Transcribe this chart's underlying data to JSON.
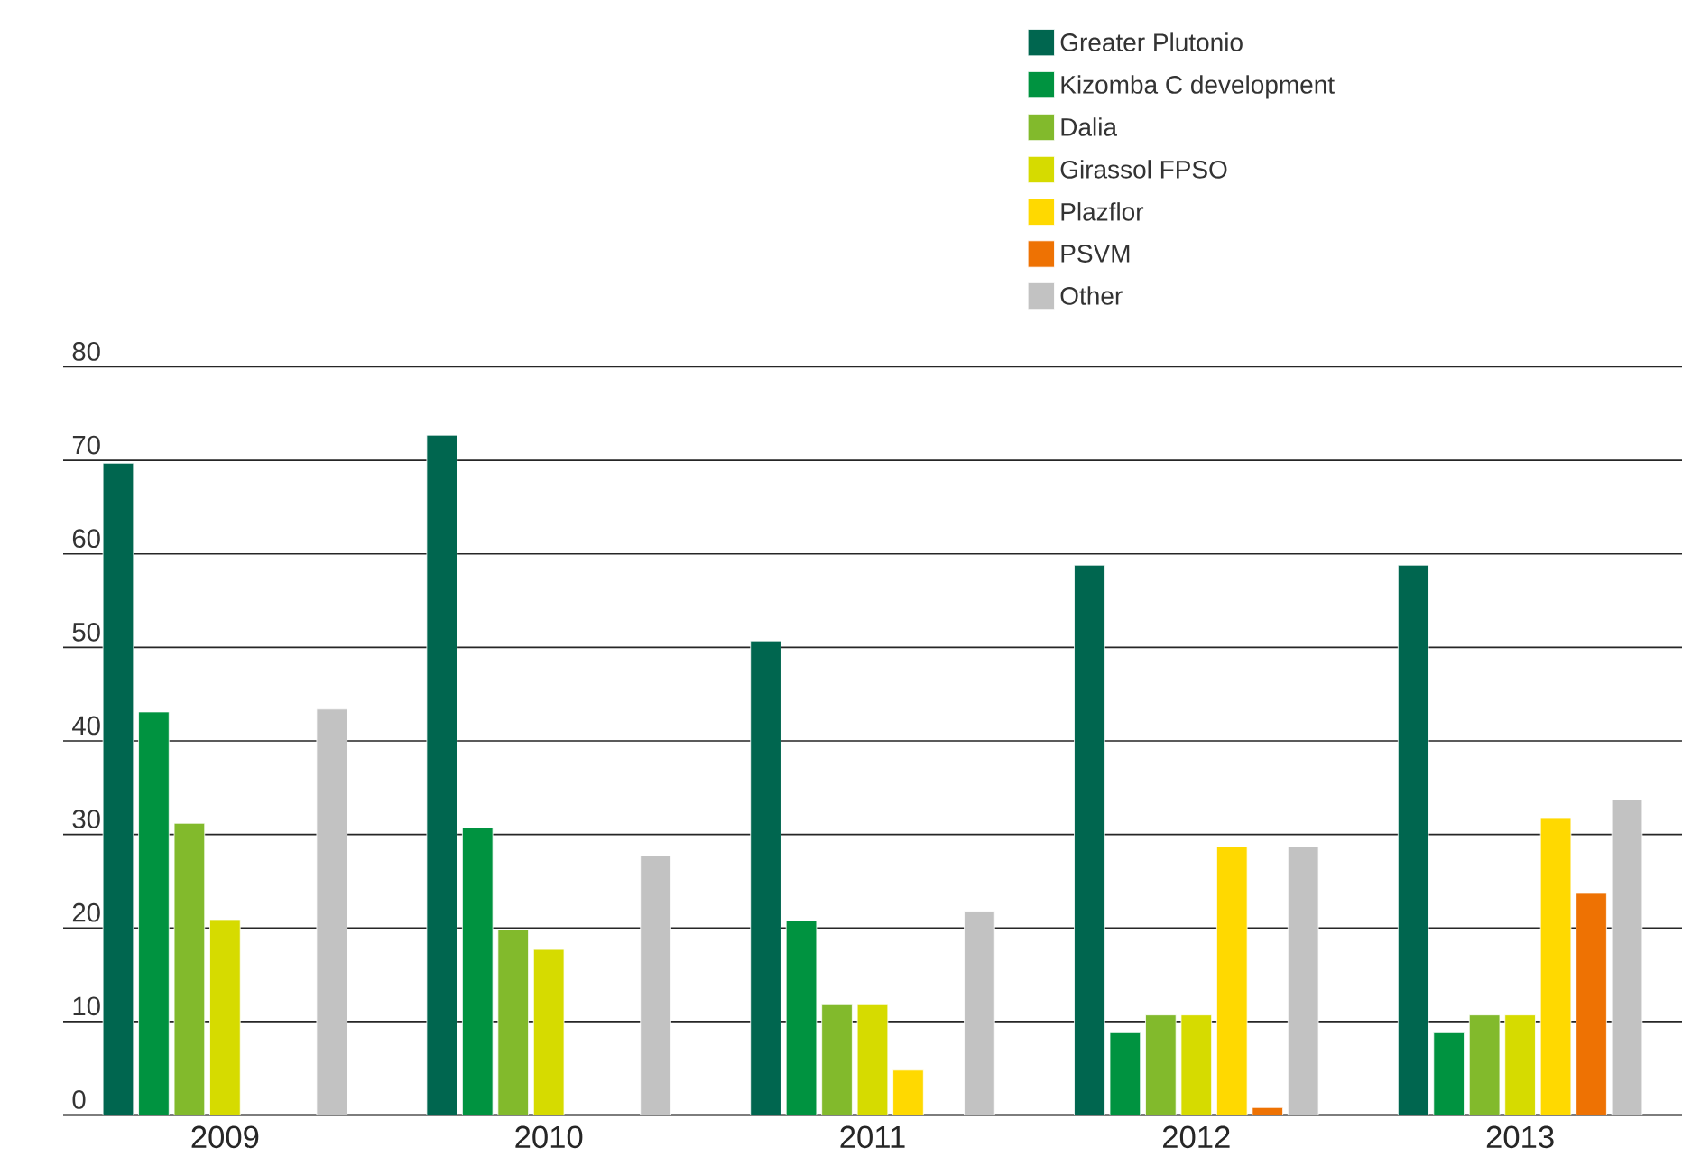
{
  "chart_data": {
    "type": "bar",
    "categories": [
      "2009",
      "2010",
      "2011",
      "2012",
      "2013"
    ],
    "series": [
      {
        "name": "Greater Plutonio",
        "color": "#00664f",
        "values": [
          69.7,
          72.7,
          50.7,
          58.8,
          58.8
        ]
      },
      {
        "name": "Kizomba C development",
        "color": "#009340",
        "values": [
          43.1,
          30.7,
          20.8,
          8.8,
          8.8
        ]
      },
      {
        "name": "Dalia",
        "color": "#82ba2c",
        "values": [
          31.2,
          19.8,
          11.8,
          10.7,
          10.7
        ]
      },
      {
        "name": "Girassol FPSO",
        "color": "#d6db00",
        "values": [
          20.9,
          17.7,
          11.8,
          10.7,
          10.7
        ]
      },
      {
        "name": "Plazflor",
        "color": "#ffd900",
        "values": [
          null,
          null,
          4.8,
          28.7,
          31.8
        ]
      },
      {
        "name": "PSVM",
        "color": "#ee7203",
        "values": [
          null,
          null,
          null,
          0.8,
          23.7
        ]
      },
      {
        "name": "Other",
        "color": "#c2c2c2",
        "values": [
          43.4,
          27.7,
          21.8,
          28.7,
          33.7
        ]
      }
    ],
    "ylim": [
      0,
      80
    ],
    "yticks": [
      0,
      10,
      20,
      30,
      40,
      50,
      60,
      70,
      80
    ],
    "grid": "y",
    "legend": "top right"
  }
}
